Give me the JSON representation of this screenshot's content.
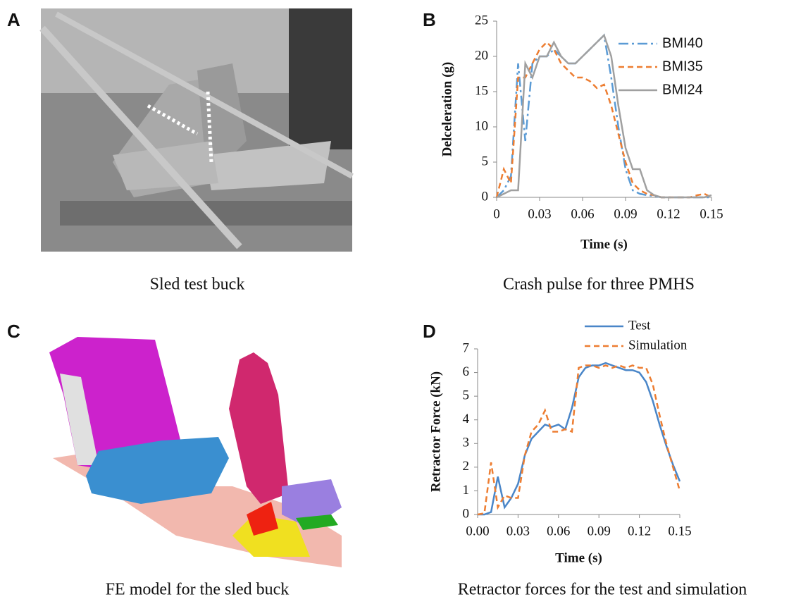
{
  "panels": [
    {
      "letter": "A",
      "caption": "Sled test buck"
    },
    {
      "letter": "B",
      "caption": "Crash pulse for three PMHS"
    },
    {
      "letter": "C",
      "caption": "FE model for the sled buck"
    },
    {
      "letter": "D",
      "caption": "Retractor forces for the test and simulation"
    }
  ],
  "chart_data": [
    {
      "type": "line",
      "x_label": "Time (s)",
      "y_label": "Delceleration (g)",
      "legend": "right",
      "x": [
        0,
        0.005,
        0.01,
        0.015,
        0.02,
        0.025,
        0.03,
        0.035,
        0.04,
        0.045,
        0.05,
        0.055,
        0.06,
        0.065,
        0.07,
        0.075,
        0.08,
        0.085,
        0.09,
        0.095,
        0.1,
        0.105,
        0.11,
        0.115,
        0.12,
        0.125,
        0.13,
        0.135,
        0.14,
        0.145,
        0.15
      ],
      "series": [
        {
          "name": "BMI40",
          "color": "#5b9bd5",
          "style": "dashdot",
          "values": [
            0,
            1,
            3,
            19,
            8,
            19,
            20,
            20,
            21,
            20,
            19,
            19,
            20,
            21,
            22,
            23,
            17,
            10,
            4,
            1,
            0.5,
            0.3,
            0.2,
            0,
            0,
            0,
            0,
            0,
            0,
            0,
            0
          ]
        },
        {
          "name": "BMI35",
          "color": "#ed7d31",
          "style": "dashed",
          "values": [
            0,
            4,
            2,
            17,
            17,
            19,
            21,
            22,
            21,
            19,
            18,
            17,
            17,
            16.5,
            15.5,
            16,
            13,
            9,
            5,
            2,
            1,
            0.5,
            0.3,
            0,
            0,
            0,
            0,
            0,
            0.3,
            0.5,
            0
          ]
        },
        {
          "name": "BMI24",
          "color": "#a0a0a0",
          "style": "solid",
          "values": [
            0,
            0.5,
            1,
            1,
            19,
            17,
            20,
            20,
            22,
            20,
            19,
            19,
            20,
            21,
            22,
            23,
            20,
            13,
            7,
            4,
            4,
            1,
            0.3,
            0,
            0,
            0,
            0,
            0,
            0,
            0,
            0.3
          ]
        }
      ],
      "xlim": [
        0,
        0.15
      ],
      "xticks": [
        0,
        0.03,
        0.06,
        0.09,
        0.12,
        0.15
      ],
      "ylim": [
        0,
        25
      ],
      "yticks": [
        0,
        5,
        10,
        15,
        20,
        25
      ]
    },
    {
      "type": "line",
      "x_label": "Time (s)",
      "y_label": "Retractor  Force (kN)",
      "legend": "top",
      "x": [
        0,
        0.005,
        0.01,
        0.015,
        0.02,
        0.025,
        0.03,
        0.035,
        0.04,
        0.045,
        0.05,
        0.055,
        0.06,
        0.065,
        0.07,
        0.075,
        0.08,
        0.085,
        0.09,
        0.095,
        0.1,
        0.105,
        0.11,
        0.115,
        0.12,
        0.125,
        0.13,
        0.135,
        0.14,
        0.145,
        0.15
      ],
      "series": [
        {
          "name": "Test",
          "color": "#4a86c8",
          "style": "solid",
          "values": [
            0,
            0,
            0.1,
            1.6,
            0.3,
            0.7,
            1.3,
            2.5,
            3.2,
            3.5,
            3.8,
            3.7,
            3.8,
            3.6,
            4.5,
            5.8,
            6.2,
            6.3,
            6.3,
            6.4,
            6.3,
            6.2,
            6.1,
            6.1,
            6.0,
            5.6,
            4.8,
            3.8,
            2.9,
            2.1,
            1.4
          ]
        },
        {
          "name": "Simulation",
          "color": "#ed7d31",
          "style": "dashed",
          "values": [
            0,
            0.05,
            2.2,
            0.3,
            0.8,
            0.7,
            0.7,
            2.5,
            3.5,
            3.8,
            4.4,
            3.5,
            3.5,
            3.6,
            3.5,
            6.2,
            6.3,
            6.3,
            6.2,
            6.3,
            6.2,
            6.3,
            6.2,
            6.3,
            6.2,
            6.2,
            5.5,
            4.2,
            3,
            2,
            1.0
          ]
        }
      ],
      "xlim": [
        0,
        0.15
      ],
      "xticks": [
        {
          "value": 0,
          "label": "0.00"
        },
        0.03,
        0.06,
        0.09,
        0.12,
        0.15
      ],
      "ylim": [
        0,
        7
      ],
      "yticks": [
        0,
        1,
        2,
        3,
        4,
        5,
        6,
        7
      ]
    }
  ]
}
